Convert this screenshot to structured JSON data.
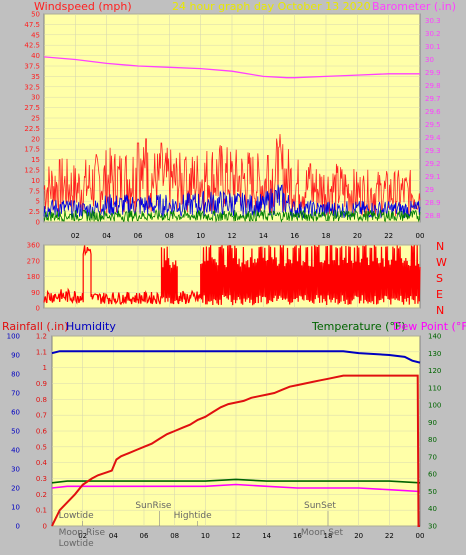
{
  "colors": {
    "background": "#c0c0c0",
    "plot_bg": "#ffffa8",
    "grid": "#d8d8b0",
    "wind_axis": "#ff2020",
    "baro_axis": "#ff40ff",
    "rain": "#e01010",
    "humidity": "#0000c0",
    "temperature": "#006400",
    "dewpoint": "#ff00ff",
    "title": "#e8e800",
    "events": "#666666"
  },
  "header": {
    "left": "Windspeed (mph)",
    "center": "24 hour graph day   October 13 2020",
    "right": "Barometer (.in)"
  },
  "lower_header": {
    "rain": "Rainfall (.in)",
    "humidity": "Humidity",
    "temperature": "Temperature (°F)",
    "dewpoint": "Dew Point (°F)"
  },
  "chart_data": [
    {
      "type": "line",
      "title": "24 hour graph day   October 13 2020",
      "ylabel_left": "Windspeed (mph)",
      "ylabel_right": "Barometer (.in)",
      "x_ticks": [
        "02",
        "04",
        "06",
        "08",
        "10",
        "12",
        "14",
        "16",
        "18",
        "20",
        "22",
        "00"
      ],
      "y_left_ticks": [
        "0",
        "2.5",
        "5",
        "7.5",
        "10",
        "12.5",
        "15",
        "17.5",
        "20",
        "22.5",
        "25",
        "27.5",
        "30",
        "32.5",
        "35",
        "37.5",
        "40",
        "42.5",
        "45",
        "47.5",
        "50"
      ],
      "y_right_ticks": [
        "28.8",
        "28.9",
        "29",
        "29.1",
        "29.2",
        "29.3",
        "29.4",
        "29.5",
        "29.6",
        "29.7",
        "29.8",
        "29.9",
        "30",
        "30.1",
        "30.2",
        "30.3"
      ],
      "ylim_left": [
        0,
        50
      ],
      "ylim_right": [
        28.75,
        30.35
      ],
      "series": [
        {
          "name": "Barometer (.in)",
          "axis": "right",
          "x": [
            0,
            2,
            4,
            6,
            8,
            10,
            12,
            14,
            15.5,
            16,
            18,
            20,
            22,
            24
          ],
          "values": [
            30.02,
            30.0,
            29.97,
            29.95,
            29.94,
            29.93,
            29.91,
            29.87,
            29.86,
            29.86,
            29.87,
            29.88,
            29.89,
            29.89
          ]
        },
        {
          "name": "Wind gust",
          "axis": "left",
          "profile": [
            8,
            9,
            8,
            9,
            10,
            10,
            11,
            10,
            10,
            9,
            10,
            11,
            10,
            10,
            9,
            12,
            9,
            8,
            8,
            8,
            7,
            7,
            7,
            7,
            7
          ],
          "peaks": [
            [
              6,
              19
            ],
            [
              6.5,
              20
            ],
            [
              7.5,
              19
            ],
            [
              14.3,
              16
            ],
            [
              15,
              18
            ],
            [
              1,
              15
            ],
            [
              9,
              15
            ],
            [
              17,
              14
            ]
          ]
        },
        {
          "name": "Wind speed",
          "axis": "left",
          "profile": [
            3,
            3.5,
            3,
            3,
            4,
            4,
            4,
            4,
            4,
            4,
            4.5,
            4.5,
            4.5,
            4,
            4,
            6,
            3,
            3,
            3,
            3,
            3,
            3,
            3,
            3,
            3
          ]
        },
        {
          "name": "Wind average",
          "axis": "left",
          "profile": [
            1.5,
            1.5,
            1.5,
            1.5,
            1.5,
            1.5,
            1.5,
            1.5,
            1.5,
            1.5,
            1.5,
            1.5,
            1.5,
            1.5,
            1.5,
            1.5,
            1.5,
            1.5,
            1.5,
            1.5,
            1.5,
            1.5,
            1.5,
            1.5,
            1.5
          ]
        }
      ]
    },
    {
      "type": "line",
      "title": "",
      "y_ticks": [
        "0",
        "90",
        "180",
        "270",
        "360"
      ],
      "y_right_labels": [
        "N",
        "W",
        "S",
        "E",
        "N"
      ],
      "ylim": [
        0,
        360
      ],
      "series": [
        {
          "name": "Wind direction",
          "segments": [
            {
              "from": 0,
              "to": 2.5,
              "mode": "noisy",
              "base": 60,
              "spread": 80
            },
            {
              "from": 2.5,
              "to": 3,
              "mode": "high"
            },
            {
              "from": 3,
              "to": 7.5,
              "mode": "noisy",
              "base": 50,
              "spread": 70
            },
            {
              "from": 7.5,
              "to": 8.5,
              "mode": "mixed"
            },
            {
              "from": 8.5,
              "to": 10,
              "mode": "noisy",
              "base": 50,
              "spread": 80
            },
            {
              "from": 10,
              "to": 24,
              "mode": "mixed"
            }
          ]
        }
      ]
    },
    {
      "type": "line",
      "title": "",
      "x_ticks": [
        "02",
        "04",
        "06",
        "08",
        "10",
        "12",
        "14",
        "16",
        "18",
        "20",
        "22",
        "00"
      ],
      "y_rain_ticks": [
        "0",
        "0.1",
        "0.2",
        "0.3",
        "0.4",
        "0.5",
        "0.6",
        "0.7",
        "0.8",
        "0.9",
        "1",
        "1.1",
        "1.2"
      ],
      "y_humidity_ticks": [
        "0",
        "10",
        "20",
        "30",
        "40",
        "50",
        "60",
        "70",
        "80",
        "90",
        "100"
      ],
      "y_temp_ticks": [
        "30",
        "40",
        "50",
        "60",
        "70",
        "80",
        "90",
        "100",
        "110",
        "120",
        "130",
        "140"
      ],
      "ylim_rain": [
        0,
        1.2
      ],
      "ylim_humidity": [
        0,
        100
      ],
      "ylim_temp": [
        30,
        140
      ],
      "series": [
        {
          "name": "Humidity",
          "axis": "humidity",
          "x": [
            0,
            0.5,
            1.5,
            4,
            12,
            16,
            19,
            20,
            22,
            23,
            23.5,
            24
          ],
          "values": [
            91,
            92,
            92,
            92,
            92,
            92,
            92,
            91,
            90,
            89,
            87,
            86
          ]
        },
        {
          "name": "Rainfall (.in)",
          "axis": "rain",
          "x": [
            0,
            0.1,
            0.5,
            1.0,
            1.5,
            2.0,
            2.6,
            3.0,
            3.6,
            3.9,
            4.2,
            4.5,
            5.0,
            5.5,
            6.0,
            6.5,
            7.0,
            7.5,
            8.0,
            8.5,
            9.0,
            9.5,
            10.0,
            10.5,
            11.0,
            11.5,
            12.0,
            12.5,
            13.0,
            13.5,
            14.0,
            14.5,
            15.0,
            15.5,
            16.0,
            16.5,
            17.0,
            17.5,
            18.0,
            19.0,
            20.0,
            21.0,
            22.0,
            23.0,
            23.85,
            23.9,
            24.0
          ],
          "values": [
            0,
            0.02,
            0.1,
            0.15,
            0.2,
            0.26,
            0.3,
            0.32,
            0.34,
            0.35,
            0.42,
            0.44,
            0.46,
            0.48,
            0.5,
            0.52,
            0.55,
            0.58,
            0.6,
            0.62,
            0.64,
            0.67,
            0.69,
            0.72,
            0.75,
            0.77,
            0.78,
            0.79,
            0.81,
            0.82,
            0.83,
            0.84,
            0.86,
            0.88,
            0.89,
            0.9,
            0.91,
            0.92,
            0.93,
            0.95,
            0.95,
            0.95,
            0.95,
            0.95,
            0.95,
            0.0,
            0.0
          ]
        },
        {
          "name": "Temperature (°F)",
          "axis": "temp",
          "x": [
            0,
            1,
            2,
            4,
            6,
            8,
            10,
            12,
            14,
            16,
            18,
            20,
            22,
            24
          ],
          "values": [
            55,
            56,
            56,
            56,
            56,
            56,
            56,
            57,
            56,
            56,
            56,
            56,
            56,
            55
          ]
        },
        {
          "name": "Dew Point (°F)",
          "axis": "temp",
          "x": [
            0,
            1,
            2,
            4,
            6,
            8,
            10,
            12,
            14,
            16,
            18,
            20,
            22,
            24
          ],
          "values": [
            52,
            53,
            53,
            53,
            53,
            53,
            53,
            54,
            53,
            52,
            52,
            52,
            51,
            50
          ]
        }
      ],
      "events": [
        {
          "label": "Lowtide",
          "hour": 2.0,
          "row": 0
        },
        {
          "label": "Moon Rise",
          "hour": 2.0,
          "row": 1
        },
        {
          "label": "Lowtide",
          "hour": 2.0,
          "row": 2
        },
        {
          "label": "SunRise",
          "hour": 7.0,
          "row": -1
        },
        {
          "label": "Hightide",
          "hour": 9.5,
          "row": 0
        },
        {
          "label": "SunSet",
          "hour": 18.0,
          "row": -1
        },
        {
          "label": "Moon Set",
          "hour": 17.8,
          "row": 1
        }
      ]
    }
  ]
}
